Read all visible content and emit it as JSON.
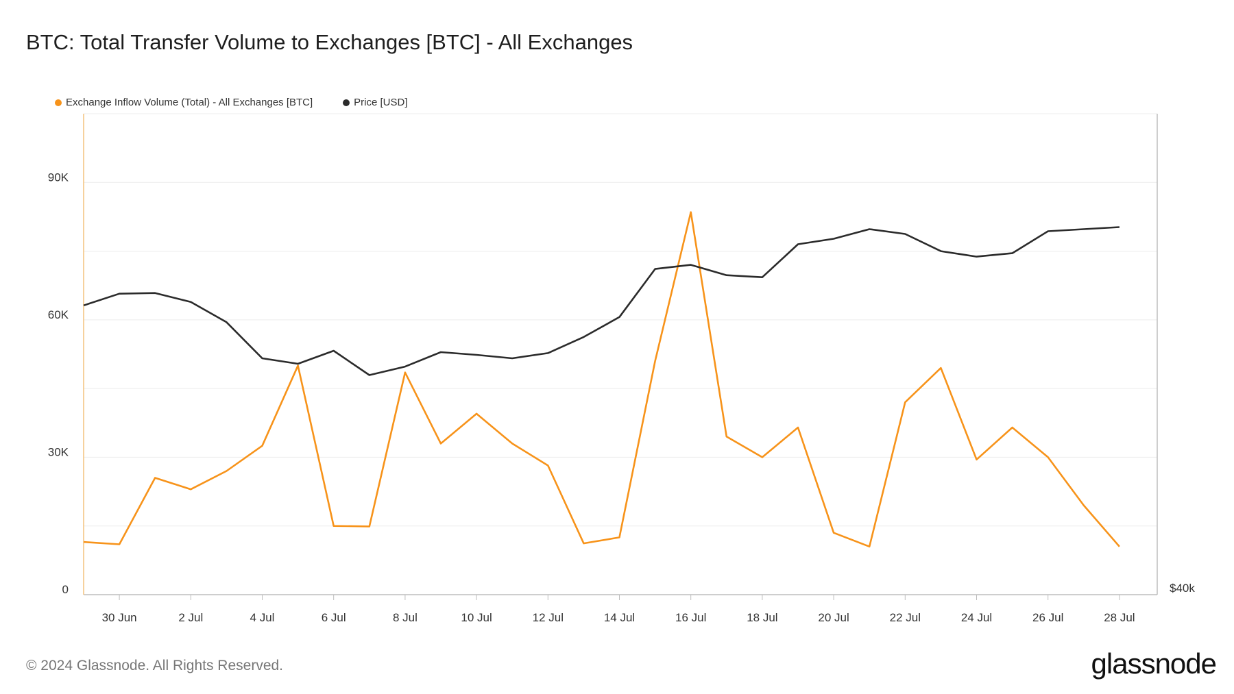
{
  "header": {
    "title": "BTC: Total Transfer Volume to Exchanges [BTC] - All Exchanges"
  },
  "footer": {
    "copyright": "© 2024 Glassnode. All Rights Reserved.",
    "logo": "glassnode"
  },
  "colors": {
    "inflow": "#f7931a",
    "price": "#2b2b2b",
    "grid": "#ececec",
    "axis": "#bdbdbd"
  },
  "chart_data": {
    "type": "line",
    "title": "BTC: Total Transfer Volume to Exchanges [BTC] - All Exchanges",
    "legend_position": "top-left",
    "grid": true,
    "x": [
      "29 Jun",
      "30 Jun",
      "1 Jul",
      "2 Jul",
      "3 Jul",
      "4 Jul",
      "5 Jul",
      "6 Jul",
      "7 Jul",
      "8 Jul",
      "9 Jul",
      "10 Jul",
      "11 Jul",
      "12 Jul",
      "13 Jul",
      "14 Jul",
      "15 Jul",
      "16 Jul",
      "17 Jul",
      "18 Jul",
      "19 Jul",
      "20 Jul",
      "21 Jul",
      "22 Jul",
      "23 Jul",
      "24 Jul",
      "25 Jul",
      "26 Jul",
      "27 Jul",
      "28 Jul"
    ],
    "x_ticks": [
      "30 Jun",
      "2 Jul",
      "4 Jul",
      "6 Jul",
      "8 Jul",
      "10 Jul",
      "12 Jul",
      "14 Jul",
      "16 Jul",
      "18 Jul",
      "20 Jul",
      "22 Jul",
      "24 Jul",
      "26 Jul",
      "28 Jul"
    ],
    "y_left_ticks": [
      "0",
      "30K",
      "60K",
      "90K"
    ],
    "y_left_lim": [
      0,
      105000
    ],
    "y_right_ticks": [
      "$40k"
    ],
    "y_right_lim": [
      40000,
      75000
    ],
    "series": [
      {
        "name": "Exchange Inflow Volume (Total) - All Exchanges [BTC]",
        "axis": "left",
        "values": [
          11500,
          11000,
          25500,
          23000,
          27000,
          32500,
          50000,
          15000,
          14900,
          48500,
          33000,
          39500,
          33000,
          28200,
          11200,
          12500,
          51000,
          83500,
          34500,
          30000,
          36500,
          13500,
          10500,
          42000,
          49500,
          29500,
          36500,
          30000,
          19500,
          10500
        ]
      },
      {
        "name": "Price [USD]",
        "axis": "right",
        "values": [
          61050,
          61900,
          61950,
          61300,
          59830,
          57200,
          56800,
          57750,
          55980,
          56600,
          57650,
          57450,
          57200,
          57580,
          58750,
          60200,
          63700,
          64000,
          63250,
          63100,
          65500,
          65900,
          66600,
          66250,
          65000,
          64600,
          64850,
          66450,
          66600,
          66750
        ]
      }
    ]
  }
}
